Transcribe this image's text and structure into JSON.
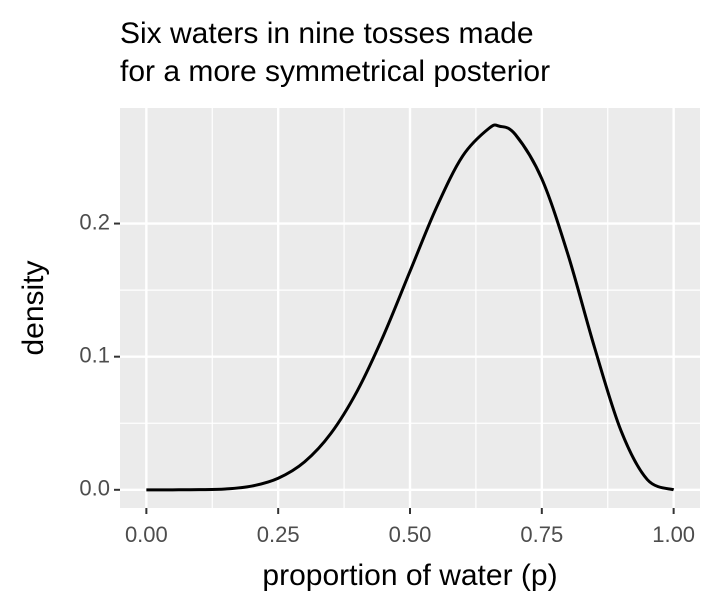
{
  "chart_data": {
    "type": "line",
    "title": [
      "Six waters in nine tosses made",
      "for a more symmetrical posterior"
    ],
    "x_label": "proportion of water (p)",
    "y_label": "density",
    "x": [
      0,
      0.05,
      0.1,
      0.15,
      0.2,
      0.25,
      0.3,
      0.35,
      0.4,
      0.45,
      0.5,
      0.55,
      0.6,
      0.65,
      0.67,
      0.7,
      0.75,
      0.8,
      0.85,
      0.9,
      0.95,
      1
    ],
    "series": [
      {
        "color": "#000000",
        "values": [
          0,
          1e-06,
          0.0001,
          0.0006,
          0.0028,
          0.0087,
          0.021,
          0.0424,
          0.0743,
          0.1161,
          0.1641,
          0.2119,
          0.2508,
          0.2716,
          0.2731,
          0.2668,
          0.2336,
          0.1762,
          0.1069,
          0.0446,
          0.0077,
          0
        ]
      }
    ],
    "xlim": [
      -0.05,
      1.05
    ],
    "ylim": [
      -0.01366,
      0.2868
    ],
    "xticks": [
      {
        "value": 0,
        "label": "0.00"
      },
      {
        "value": 0.25,
        "label": "0.25"
      },
      {
        "value": 0.5,
        "label": "0.50"
      },
      {
        "value": 0.75,
        "label": "0.75"
      },
      {
        "value": 1,
        "label": "1.00"
      }
    ],
    "yticks": [
      {
        "value": 0,
        "label": "0.0"
      },
      0.1,
      0.2
    ],
    "grid": true
  }
}
